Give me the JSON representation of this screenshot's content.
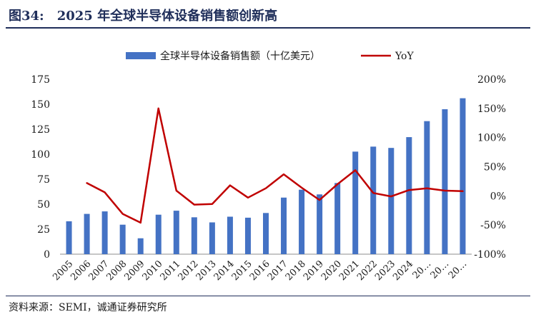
{
  "figure": {
    "number": "图34:",
    "title": "2025 年全球半导体设备销售额创新高"
  },
  "source_note": "资料来源：SEMI，诚通证券研究所",
  "chart_data": {
    "type": "bar",
    "categories": [
      "2005",
      "2006",
      "2007",
      "2008",
      "2009",
      "2010",
      "2011",
      "2012",
      "2013",
      "2014",
      "2015",
      "2016",
      "2017",
      "2018",
      "2019",
      "2020",
      "2021",
      "2022",
      "2023",
      "2024",
      "20…",
      "20…",
      "20…"
    ],
    "series": [
      {
        "name": "全球半导体设备销售额（十亿美元）",
        "type": "bar",
        "axis": "left",
        "color": "#4472c4",
        "values": [
          32.9,
          40.3,
          42.8,
          29.5,
          15.9,
          39.5,
          43.5,
          36.9,
          31.8,
          37.5,
          36.5,
          41.2,
          56.6,
          64.5,
          59.8,
          71.2,
          102.6,
          107.6,
          106.3,
          117.1,
          133.1,
          145.0,
          156.0
        ]
      },
      {
        "name": "YoY",
        "type": "line",
        "axis": "right",
        "color": "#c00000",
        "values": [
          null,
          22,
          6,
          -31,
          -46,
          150,
          9,
          -15,
          -14,
          18,
          -3,
          13,
          37,
          14,
          -7,
          20,
          44,
          5,
          -1,
          10,
          13,
          9,
          8
        ]
      }
    ],
    "y_left": {
      "min": 0,
      "max": 175,
      "ticks": [
        0,
        25,
        50,
        75,
        100,
        125,
        150,
        175
      ]
    },
    "y_right": {
      "min": -100,
      "max": 200,
      "ticks": [
        -100,
        -50,
        0,
        50,
        100,
        150,
        200
      ],
      "tick_suffix": "%"
    },
    "grid": false,
    "legend_position": "top"
  }
}
